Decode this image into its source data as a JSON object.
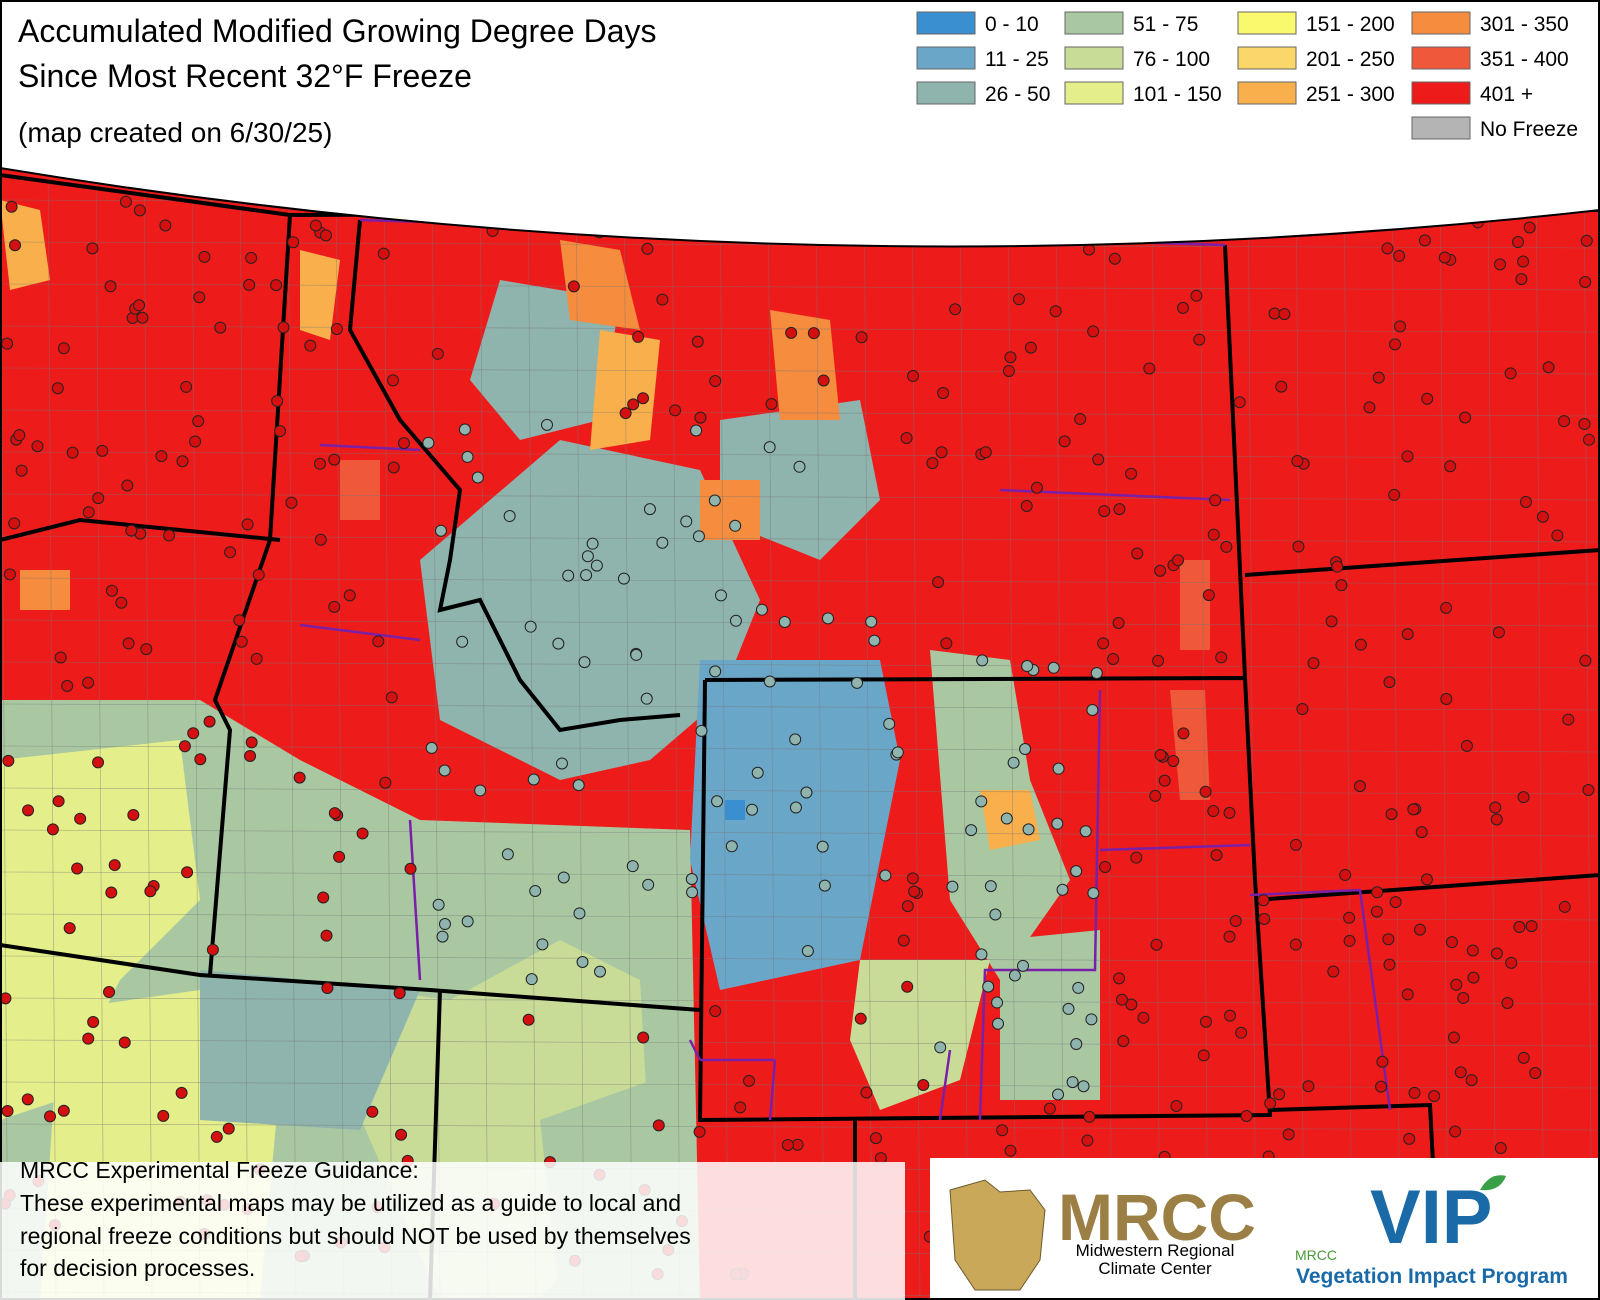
{
  "header": {
    "title_lines": [
      "Accumulated Modified Growing Degree Days",
      "Since Most Recent 32°F Freeze"
    ],
    "subtitle": "(map created on 6/30/25)"
  },
  "legend": [
    {
      "label": "0 - 10",
      "color": "#3a8fd0"
    },
    {
      "label": "11 - 25",
      "color": "#6aa6c8"
    },
    {
      "label": "26 - 50",
      "color": "#8fb3ad"
    },
    {
      "label": "51 - 75",
      "color": "#a9c8a2"
    },
    {
      "label": "76 - 100",
      "color": "#c8dc98"
    },
    {
      "label": "101 - 150",
      "color": "#e4ee8a"
    },
    {
      "label": "151 - 200",
      "color": "#faf86c"
    },
    {
      "label": "201 - 250",
      "color": "#fbd66a"
    },
    {
      "label": "251 - 300",
      "color": "#f9b04c"
    },
    {
      "label": "301 - 350",
      "color": "#f58c3e"
    },
    {
      "label": "351 - 400",
      "color": "#f0583a"
    },
    {
      "label": "401 +",
      "color": "#ee1b1b"
    },
    {
      "label": "No Freeze",
      "color": "#b4b4b4"
    }
  ],
  "footer": {
    "heading": "MRCC Experimental Freeze Guidance:",
    "lines": [
      "These experimental maps may be utilized as a guide to local and",
      "regional freeze conditions but should NOT be used by themselves",
      "for decision processes."
    ]
  },
  "logos": {
    "mrcc": "MRCC",
    "mrcc_sub": [
      "Midwestern Regional",
      "Climate Center"
    ],
    "vip_small": "MRCC",
    "vip": "VIP",
    "vip_sub": "Vegetation Impact Program"
  }
}
